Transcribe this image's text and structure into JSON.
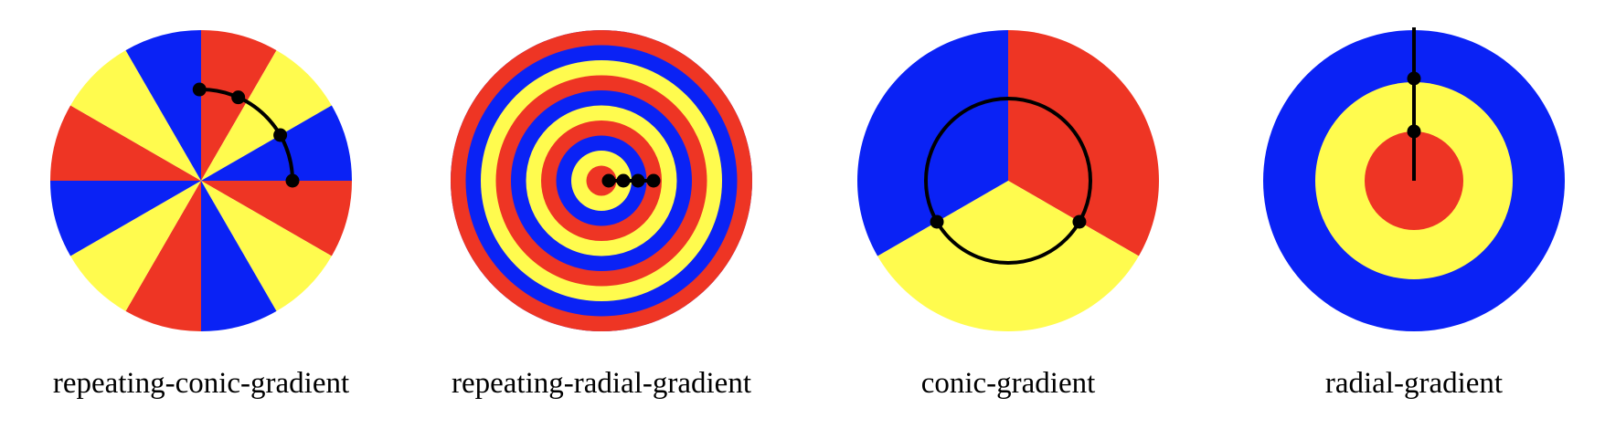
{
  "colors": {
    "red": "#ee3524",
    "yellow": "#fffb4e",
    "blue": "#0a22f5",
    "stroke": "#000000"
  },
  "figures": [
    {
      "kind": "repeating-conic-gradient",
      "caption": "repeating-conic-gradient",
      "sector_degrees": 30,
      "colors_in_order": [
        "red",
        "yellow",
        "blue"
      ],
      "repeat": true,
      "stop_markers": 4
    },
    {
      "kind": "repeating-radial-gradient",
      "caption": "repeating-radial-gradient",
      "colors_in_order": [
        "red",
        "yellow",
        "blue"
      ],
      "repeat": true,
      "stop_markers": 4
    },
    {
      "kind": "conic-gradient",
      "caption": "conic-gradient",
      "colors_in_order": [
        "red",
        "yellow",
        "blue"
      ],
      "sector_degrees": 120,
      "stop_markers": 2
    },
    {
      "kind": "radial-gradient",
      "caption": "radial-gradient",
      "colors_in_order": [
        "red",
        "yellow",
        "blue"
      ],
      "stop_markers": 2
    }
  ]
}
